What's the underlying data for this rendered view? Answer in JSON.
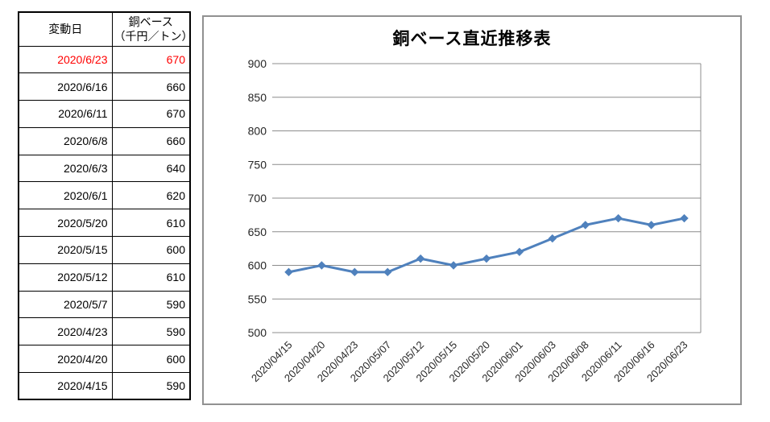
{
  "colors": {
    "highlight": "#FF0000",
    "series_line": "#4F81BD",
    "gridline": "#8C8C8C",
    "chart_border": "#919191"
  },
  "table": {
    "header": {
      "date": "変動日",
      "value_line1": "銅ベース",
      "value_line2": "（千円／トン）"
    },
    "rows": [
      {
        "date": "2020/6/23",
        "value": "670",
        "highlight": true
      },
      {
        "date": "2020/6/16",
        "value": "660",
        "highlight": false
      },
      {
        "date": "2020/6/11",
        "value": "670",
        "highlight": false
      },
      {
        "date": "2020/6/8",
        "value": "660",
        "highlight": false
      },
      {
        "date": "2020/6/3",
        "value": "640",
        "highlight": false
      },
      {
        "date": "2020/6/1",
        "value": "620",
        "highlight": false
      },
      {
        "date": "2020/5/20",
        "value": "610",
        "highlight": false
      },
      {
        "date": "2020/5/15",
        "value": "600",
        "highlight": false
      },
      {
        "date": "2020/5/12",
        "value": "610",
        "highlight": false
      },
      {
        "date": "2020/5/7",
        "value": "590",
        "highlight": false
      },
      {
        "date": "2020/4/23",
        "value": "590",
        "highlight": false
      },
      {
        "date": "2020/4/20",
        "value": "600",
        "highlight": false
      },
      {
        "date": "2020/4/15",
        "value": "590",
        "highlight": false
      }
    ]
  },
  "chart_data": {
    "type": "line",
    "title": "銅ベース直近推移表",
    "categories": [
      "2020/04/15",
      "2020/04/20",
      "2020/04/23",
      "2020/05/07",
      "2020/05/12",
      "2020/05/15",
      "2020/05/20",
      "2020/06/01",
      "2020/06/03",
      "2020/06/08",
      "2020/06/11",
      "2020/06/16",
      "2020/06/23"
    ],
    "values": [
      590,
      600,
      590,
      590,
      610,
      600,
      610,
      620,
      640,
      660,
      670,
      660,
      670
    ],
    "xlabel": "",
    "ylabel": "",
    "ylim": [
      500,
      900
    ],
    "yticks": [
      900,
      850,
      800,
      750,
      700,
      650,
      600,
      550,
      500
    ],
    "grid": true,
    "legend": "none",
    "marker": "diamond",
    "line_color": "#4F81BD"
  }
}
